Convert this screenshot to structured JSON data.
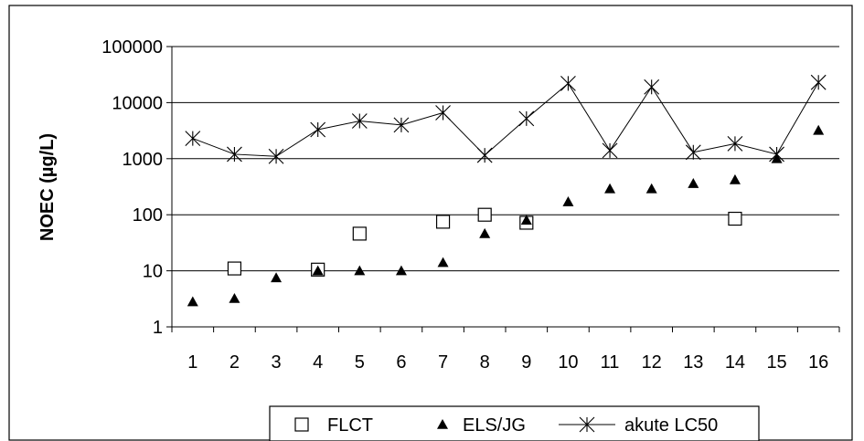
{
  "chart_data": {
    "type": "scatter",
    "ylabel": "NOEC  (µg/L)",
    "xlabel": "",
    "y_scale": "log",
    "ylim": [
      1,
      100000
    ],
    "y_ticks": [
      "1",
      "10",
      "100",
      "1000",
      "10000",
      "100000"
    ],
    "categories": [
      "1",
      "2",
      "3",
      "4",
      "5",
      "6",
      "7",
      "8",
      "9",
      "10",
      "11",
      "12",
      "13",
      "14",
      "15",
      "16"
    ],
    "grid": true,
    "legend": "bottom",
    "series": [
      {
        "name": "FLCT",
        "marker": "open-square",
        "points": [
          [
            2,
            11
          ],
          [
            4,
            10.5
          ],
          [
            5,
            46
          ],
          [
            7,
            75
          ],
          [
            8,
            100
          ],
          [
            9,
            72
          ],
          [
            14,
            85
          ]
        ]
      },
      {
        "name": "ELS/JG",
        "marker": "filled-triangle",
        "points": [
          [
            1,
            2.8
          ],
          [
            2,
            3.2
          ],
          [
            3,
            7.5
          ],
          [
            4,
            10
          ],
          [
            5,
            10
          ],
          [
            6,
            10
          ],
          [
            7,
            14
          ],
          [
            8,
            46
          ],
          [
            9,
            80
          ],
          [
            10,
            170
          ],
          [
            11,
            290
          ],
          [
            12,
            290
          ],
          [
            13,
            360
          ],
          [
            14,
            420
          ],
          [
            15,
            1000
          ],
          [
            16,
            3200
          ]
        ]
      },
      {
        "name": "akute LC50",
        "marker": "asterisk-line",
        "points": [
          [
            1,
            2300
          ],
          [
            2,
            1200
          ],
          [
            3,
            1100
          ],
          [
            4,
            3300
          ],
          [
            5,
            4700
          ],
          [
            6,
            4000
          ],
          [
            7,
            6600
          ],
          [
            8,
            1150
          ],
          [
            9,
            5200
          ],
          [
            10,
            22000
          ],
          [
            11,
            1400
          ],
          [
            12,
            19000
          ],
          [
            13,
            1300
          ],
          [
            14,
            1850
          ],
          [
            15,
            1200
          ],
          [
            16,
            23000
          ]
        ]
      }
    ],
    "colors": {
      "line": "#000000",
      "grid": "#000000",
      "border": "#000000"
    }
  }
}
